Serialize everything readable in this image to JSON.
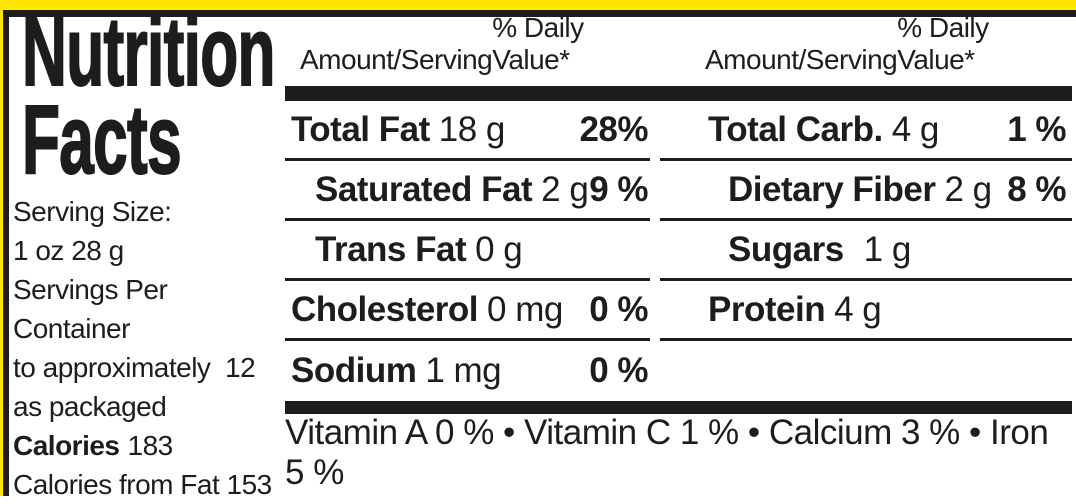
{
  "colors": {
    "package_yellow": "#FFE800",
    "ink_black": "#1D1D1B",
    "background": "#FFFFFF"
  },
  "title": {
    "line1": "Nutrition",
    "line2": "Facts"
  },
  "serving_info": {
    "lines": [
      "Serving Size:",
      "1 oz 28 g",
      "Servings Per Container",
      "to approximately  12",
      "as packaged"
    ],
    "calories_label": "Calories",
    "calories_value": "183",
    "calories_from_fat": "Calories from Fat 153"
  },
  "table": {
    "columns": [
      {
        "header_amount": "Amount/Serving",
        "header_dv": "% Daily Value*",
        "rows": [
          {
            "label": "Total Fat",
            "value": "18 g",
            "dv": "28%"
          },
          {
            "label": "Saturated Fat",
            "value": "2 g",
            "dv": "9 %"
          },
          {
            "label": "Trans Fat",
            "value": "0 g",
            "dv": ""
          },
          {
            "label": "Cholesterol",
            "value": "0 mg",
            "dv": "0 %"
          },
          {
            "label": "Sodium",
            "value": "1 mg",
            "dv": "0 %"
          }
        ]
      },
      {
        "header_amount": "Amount/Serving",
        "header_dv": "% Daily Value*",
        "rows": [
          {
            "label": "Total Carb.",
            "value": "4 g",
            "dv": "1 %"
          },
          {
            "label": "Dietary Fiber",
            "value": "2 g",
            "dv": "8 %"
          },
          {
            "label": "Sugars",
            "value": "1 g",
            "dv": ""
          },
          {
            "label": "Protein",
            "value": "4 g",
            "dv": ""
          },
          {
            "label": "",
            "value": "",
            "dv": ""
          }
        ]
      }
    ]
  },
  "vitamins_line": "Vitamin A 0 % • Vitamin C 1 % • Calcium 3 % • Iron 5 %"
}
